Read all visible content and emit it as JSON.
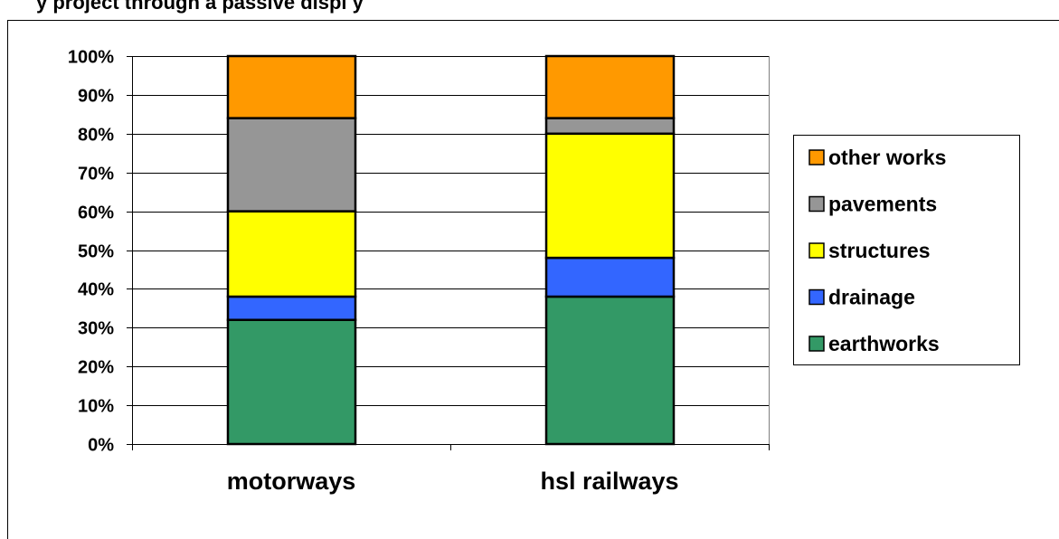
{
  "chart_data": {
    "type": "bar",
    "stacked": true,
    "title": "y project through a passive displ y",
    "categories": [
      "motorways",
      "hsl railways"
    ],
    "series": [
      {
        "name": "earthworks",
        "values": [
          32,
          38
        ],
        "color": "#339966"
      },
      {
        "name": "drainage",
        "values": [
          6,
          10
        ],
        "color": "#3366ff"
      },
      {
        "name": "structures",
        "values": [
          22,
          32
        ],
        "color": "#ffff00"
      },
      {
        "name": "pavements",
        "values": [
          24,
          4
        ],
        "color": "#969696"
      },
      {
        "name": "other works",
        "values": [
          16,
          16
        ],
        "color": "#ff9900"
      }
    ],
    "ylim": [
      0,
      100
    ],
    "yticks": [
      "0%",
      "10%",
      "20%",
      "30%",
      "40%",
      "50%",
      "60%",
      "70%",
      "80%",
      "90%",
      "100%"
    ],
    "grid": true,
    "legend_position": "right",
    "legend_order": [
      "other works",
      "pavements",
      "structures",
      "drainage",
      "earthworks"
    ],
    "xlabel": "",
    "ylabel": ""
  }
}
